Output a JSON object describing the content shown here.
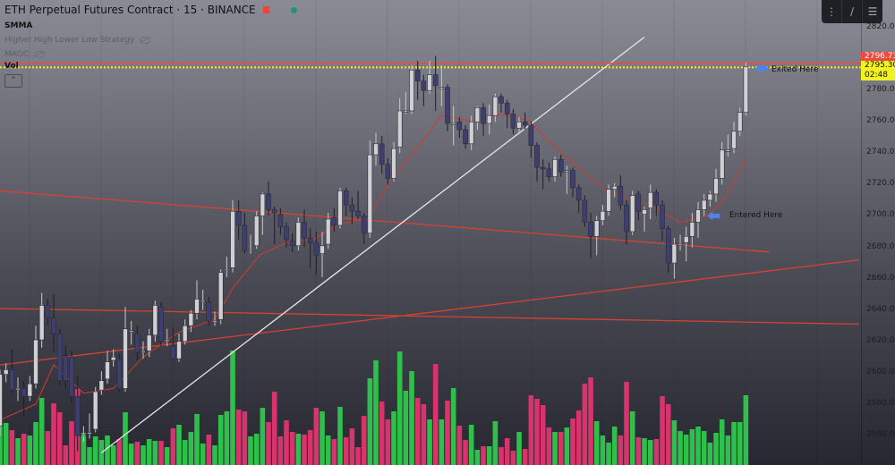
{
  "header": {
    "symbol_title": "ETH Perpetual Futures Contract · 15 · BINANCE",
    "indicators": [
      "SMMA",
      "Higher High Lower Low Strategy",
      "MAGC",
      "Vol"
    ],
    "collapse_icon": "chevron-up-icon"
  },
  "toolbar": {
    "icons": [
      "drag-handle-icon",
      "trend-line-icon",
      "menu-lines-icon"
    ]
  },
  "colors": {
    "up_candle": "#cfcfd4",
    "down_candle": "#3d3f70",
    "candle_border": "#2a2a33",
    "vol_up": "#2ec04a",
    "vol_down": "#d8336a",
    "smma": "#d23a2c",
    "drawing_red": "#d8412f",
    "drawing_white": "#e6e6ea",
    "last_price_bg": "#f2f21e",
    "alert_bg": "#ef4a3f",
    "arrow": "#4a84f0"
  },
  "price_axis": {
    "ticks": [
      "2820.00",
      "2780.00",
      "2760.00",
      "2740.00",
      "2720.00",
      "2700.00",
      "2680.00",
      "2660.00",
      "2640.00",
      "2620.00",
      "2600.00",
      "2580.00",
      "2560.00"
    ],
    "alert_price": "2796.73",
    "last_price": "2795.30",
    "countdown": "02:48"
  },
  "annotations": {
    "entered": "Entered Here",
    "exited": "Exited Here"
  },
  "chart_data": {
    "type": "candlestick",
    "title": "ETH Perpetual Futures Contract · 15 · BINANCE",
    "ylim": [
      2545,
      2830
    ],
    "ohlc": [
      [
        2566,
        2602,
        2560,
        2599
      ],
      [
        2599,
        2606,
        2594,
        2602
      ],
      [
        2602,
        2615,
        2587,
        2589
      ],
      [
        2590,
        2597,
        2582,
        2590
      ],
      [
        2590,
        2594,
        2572,
        2585
      ],
      [
        2585,
        2598,
        2582,
        2593
      ],
      [
        2593,
        2630,
        2590,
        2621
      ],
      [
        2621,
        2651,
        2616,
        2643
      ],
      [
        2643,
        2647,
        2630,
        2635
      ],
      [
        2635,
        2650,
        2613,
        2625
      ],
      [
        2625,
        2628,
        2592,
        2595
      ],
      [
        2611,
        2617,
        2590,
        2595
      ],
      [
        2610,
        2614,
        2581,
        2585
      ],
      [
        2585,
        2598,
        2550,
        2560
      ],
      [
        2560,
        2566,
        2556,
        2561
      ],
      [
        2562,
        2574,
        2558,
        2562
      ],
      [
        2564,
        2591,
        2562,
        2588
      ],
      [
        2589,
        2601,
        2586,
        2595
      ],
      [
        2596,
        2614,
        2593,
        2607
      ],
      [
        2608,
        2615,
        2604,
        2610
      ],
      [
        2609,
        2612,
        2588,
        2590
      ],
      [
        2590,
        2642,
        2588,
        2628
      ],
      [
        2627,
        2633,
        2618,
        2627
      ],
      [
        2625,
        2630,
        2608,
        2613
      ],
      [
        2614,
        2620,
        2609,
        2614
      ],
      [
        2614,
        2628,
        2610,
        2624
      ],
      [
        2624,
        2646,
        2620,
        2643
      ],
      [
        2642,
        2645,
        2617,
        2620
      ],
      [
        2621,
        2628,
        2617,
        2621
      ],
      [
        2617,
        2629,
        2608,
        2609
      ],
      [
        2609,
        2625,
        2607,
        2620
      ],
      [
        2620,
        2634,
        2618,
        2630
      ],
      [
        2630,
        2640,
        2626,
        2638
      ],
      [
        2638,
        2659,
        2634,
        2647
      ],
      [
        2646,
        2653,
        2640,
        2646
      ],
      [
        2645,
        2648,
        2630,
        2633
      ],
      [
        2633,
        2639,
        2630,
        2633
      ],
      [
        2634,
        2666,
        2631,
        2664
      ],
      [
        2666,
        2674,
        2661,
        2666
      ],
      [
        2667,
        2710,
        2664,
        2703
      ],
      [
        2703,
        2710,
        2685,
        2694
      ],
      [
        2694,
        2702,
        2676,
        2678
      ],
      [
        2679,
        2688,
        2676,
        2679
      ],
      [
        2681,
        2703,
        2679,
        2700
      ],
      [
        2700,
        2715,
        2688,
        2714
      ],
      [
        2714,
        2722,
        2700,
        2704
      ],
      [
        2704,
        2706,
        2682,
        2702
      ],
      [
        2701,
        2705,
        2688,
        2693
      ],
      [
        2693,
        2696,
        2680,
        2685
      ],
      [
        2684,
        2689,
        2677,
        2681
      ],
      [
        2681,
        2699,
        2678,
        2696
      ],
      [
        2696,
        2704,
        2680,
        2686
      ],
      [
        2686,
        2692,
        2667,
        2683
      ],
      [
        2683,
        2690,
        2662,
        2675
      ],
      [
        2676,
        2690,
        2661,
        2681
      ],
      [
        2682,
        2702,
        2679,
        2698
      ],
      [
        2699,
        2705,
        2690,
        2694
      ],
      [
        2694,
        2718,
        2692,
        2716
      ],
      [
        2716,
        2718,
        2700,
        2707
      ],
      [
        2707,
        2712,
        2695,
        2703
      ],
      [
        2703,
        2716,
        2698,
        2700
      ],
      [
        2700,
        2702,
        2682,
        2689
      ],
      [
        2689,
        2748,
        2686,
        2739
      ],
      [
        2739,
        2753,
        2732,
        2746
      ],
      [
        2746,
        2751,
        2727,
        2733
      ],
      [
        2733,
        2737,
        2720,
        2724
      ],
      [
        2724,
        2747,
        2722,
        2743
      ],
      [
        2744,
        2775,
        2740,
        2767
      ],
      [
        2767,
        2779,
        2765,
        2767
      ],
      [
        2767,
        2796,
        2765,
        2793
      ],
      [
        2793,
        2799,
        2774,
        2786
      ],
      [
        2786,
        2790,
        2770,
        2780
      ],
      [
        2780,
        2799,
        2778,
        2790
      ],
      [
        2790,
        2802,
        2767,
        2783
      ],
      [
        2782,
        2796,
        2770,
        2782
      ],
      [
        2782,
        2784,
        2754,
        2759
      ],
      [
        2759,
        2770,
        2745,
        2759
      ],
      [
        2760,
        2763,
        2750,
        2755
      ],
      [
        2755,
        2758,
        2743,
        2746
      ],
      [
        2746,
        2764,
        2742,
        2760
      ],
      [
        2760,
        2770,
        2755,
        2769
      ],
      [
        2769,
        2772,
        2751,
        2759
      ],
      [
        2759,
        2771,
        2752,
        2764
      ],
      [
        2764,
        2778,
        2760,
        2776
      ],
      [
        2776,
        2778,
        2766,
        2772
      ],
      [
        2772,
        2774,
        2756,
        2765
      ],
      [
        2765,
        2768,
        2752,
        2756
      ],
      [
        2756,
        2763,
        2752,
        2760
      ],
      [
        2760,
        2766,
        2755,
        2758
      ],
      [
        2758,
        2760,
        2737,
        2745
      ],
      [
        2745,
        2747,
        2722,
        2731
      ],
      [
        2731,
        2736,
        2717,
        2730
      ],
      [
        2730,
        2734,
        2722,
        2725
      ],
      [
        2725,
        2738,
        2722,
        2736
      ],
      [
        2736,
        2739,
        2725,
        2728
      ],
      [
        2729,
        2732,
        2714,
        2729
      ],
      [
        2729,
        2731,
        2712,
        2718
      ],
      [
        2718,
        2720,
        2702,
        2710
      ],
      [
        2710,
        2713,
        2693,
        2696
      ],
      [
        2696,
        2702,
        2673,
        2687
      ],
      [
        2687,
        2700,
        2675,
        2697
      ],
      [
        2697,
        2707,
        2694,
        2703
      ],
      [
        2703,
        2720,
        2700,
        2717
      ],
      [
        2717,
        2721,
        2712,
        2719
      ],
      [
        2719,
        2726,
        2704,
        2707
      ],
      [
        2707,
        2710,
        2682,
        2690
      ],
      [
        2690,
        2716,
        2688,
        2713
      ],
      [
        2714,
        2716,
        2697,
        2703
      ],
      [
        2701,
        2706,
        2690,
        2704
      ],
      [
        2705,
        2720,
        2698,
        2715
      ],
      [
        2715,
        2717,
        2700,
        2707
      ],
      [
        2707,
        2710,
        2684,
        2692
      ],
      [
        2692,
        2694,
        2664,
        2670
      ],
      [
        2670,
        2686,
        2660,
        2682
      ],
      [
        2682,
        2688,
        2678,
        2682
      ],
      [
        2683,
        2693,
        2671,
        2687
      ],
      [
        2687,
        2702,
        2680,
        2696
      ],
      [
        2696,
        2709,
        2686,
        2704
      ],
      [
        2704,
        2714,
        2700,
        2710
      ],
      [
        2710,
        2716,
        2706,
        2714
      ],
      [
        2714,
        2730,
        2709,
        2724
      ],
      [
        2724,
        2747,
        2720,
        2742
      ],
      [
        2742,
        2752,
        2738,
        2742
      ],
      [
        2743,
        2760,
        2740,
        2754
      ],
      [
        2754,
        2769,
        2751,
        2766
      ],
      [
        2766,
        2798,
        2764,
        2795.3
      ]
    ],
    "volume": [
      52,
      47,
      39,
      30,
      35,
      33,
      48,
      75,
      38,
      69,
      59,
      22,
      49,
      85,
      36,
      20,
      32,
      28,
      33,
      22,
      29,
      59,
      24,
      26,
      22,
      29,
      27,
      27,
      20,
      41,
      45,
      28,
      37,
      57,
      24,
      34,
      22,
      56,
      60,
      128,
      62,
      60,
      32,
      35,
      64,
      48,
      82,
      32,
      50,
      37,
      35,
      34,
      39,
      64,
      60,
      33,
      29,
      65,
      31,
      41,
      20,
      55,
      97,
      117,
      71,
      51,
      60,
      127,
      83,
      105,
      75,
      68,
      51,
      113,
      51,
      72,
      86,
      44,
      28,
      45,
      17,
      21,
      21,
      49,
      20,
      30,
      16,
      37,
      18,
      78,
      74,
      67,
      42,
      37,
      37,
      42,
      52,
      61,
      91,
      98,
      49,
      33,
      25,
      43,
      33,
      93,
      60,
      31,
      30,
      28,
      29,
      77,
      68,
      50,
      38,
      34,
      40,
      43,
      38,
      25,
      36,
      51,
      33,
      48,
      48,
      78
    ],
    "smma": [
      [
        0,
        2570
      ],
      [
        6,
        2580
      ],
      [
        9,
        2605
      ],
      [
        14,
        2587
      ],
      [
        19,
        2590
      ],
      [
        24,
        2610
      ],
      [
        30,
        2626
      ],
      [
        36,
        2634
      ],
      [
        39,
        2654
      ],
      [
        43.5,
        2675
      ],
      [
        48,
        2683
      ],
      [
        52.5,
        2685
      ],
      [
        57,
        2695
      ],
      [
        61.5,
        2698
      ],
      [
        63,
        2707
      ],
      [
        66,
        2725
      ],
      [
        70.5,
        2746
      ],
      [
        74,
        2764
      ],
      [
        79.5,
        2760
      ],
      [
        84,
        2765
      ],
      [
        88.5,
        2761
      ],
      [
        93,
        2744
      ],
      [
        97.5,
        2729
      ],
      [
        102,
        2715
      ],
      [
        108,
        2708
      ],
      [
        114,
        2696
      ],
      [
        118.5,
        2700
      ],
      [
        121.5,
        2711
      ],
      [
        125,
        2736
      ]
    ],
    "drawings": [
      {
        "kind": "trend",
        "color": "red",
        "from": [
          0,
          2716
        ],
        "to": [
          129,
          2677
        ]
      },
      {
        "kind": "trend",
        "color": "red",
        "from": [
          0,
          2641
        ],
        "to": [
          144,
          2631
        ]
      },
      {
        "kind": "trend",
        "color": "red",
        "from": [
          0,
          2605
        ],
        "to": [
          144,
          2672
        ]
      },
      {
        "kind": "trend",
        "color": "white",
        "from": [
          17,
          2549
        ],
        "to": [
          108,
          2814
        ]
      },
      {
        "kind": "hline",
        "color": "red",
        "price": 2796.73
      },
      {
        "kind": "hline",
        "color": "yellow-dotted",
        "price": 2795.3
      }
    ],
    "markers": [
      {
        "label": "Entered Here",
        "bar": 119,
        "price": 2700
      },
      {
        "label": "Exited Here",
        "bar": 127,
        "price": 2794
      }
    ]
  }
}
